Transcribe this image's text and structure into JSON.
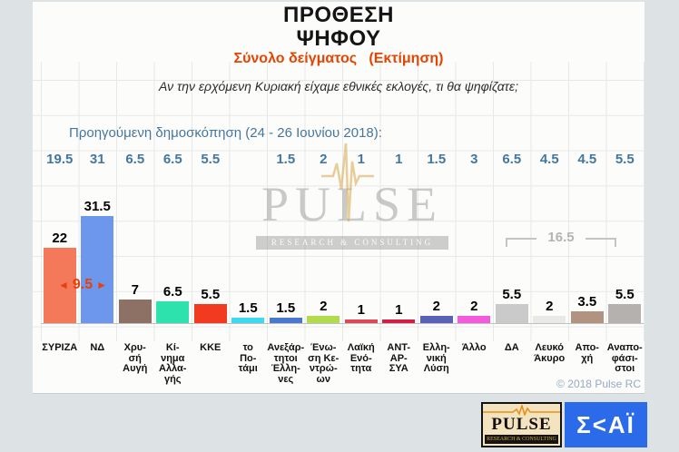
{
  "header": {
    "title_line1": "ΠΡΟΘΕΣΗ",
    "title_line2": "ΨΗΦΟΥ",
    "subtitle": "Σύνολο δείγματος   (Εκτίμηση)",
    "question": "Αν την ερχόμενη Κυριακή είχαμε εθνικές εκλογές, τι θα ψηφίζατε;",
    "previous_poll_label": "Προηγούμενη δημοσκόπηση (24 - 26 Ιουνίου 2018):"
  },
  "annotations": {
    "leader_gap": "9.5",
    "left_arrow": "◄",
    "right_arrow": "►",
    "undecided_sum": "16.5"
  },
  "footer": {
    "copyright": "© 2018 Pulse RC"
  },
  "watermark": {
    "name": "PULSE",
    "tagline": "RESEARCH & CONSULTING"
  },
  "logos": {
    "pulse": {
      "name": "PULSE",
      "tagline": "RESEARCH & CONSULTING"
    },
    "skai": {
      "text": "Σ<ΑΪ"
    }
  },
  "chart_data": {
    "type": "bar",
    "title": "ΠΡΟΘΕΣΗ ΨΗΦΟΥ — Σύνολο δείγματος (Εκτίμηση)",
    "categories": [
      "ΣΥΡΙΖΑ",
      "ΝΔ",
      "Χρυσή Αυγή",
      "Κίνημα Αλλαγής",
      "ΚΚΕ",
      "το Ποτάμι",
      "Ανεξάρτητοι Έλληνες",
      "Ένωση Κεντρώων",
      "Λαϊκή Ενότητα",
      "ΑΝΤ-ΑΡ-ΣΥΑ",
      "Ελληνική Λύση",
      "Άλλο",
      "ΔΑ",
      "Λευκό Άκυρο",
      "Αποχή",
      "Αναποφάσιστοι"
    ],
    "category_display_lines": [
      [
        "ΣΥΡΙΖΑ"
      ],
      [
        "ΝΔ"
      ],
      [
        "Χρυ-",
        "σή",
        "Αυγή"
      ],
      [
        "Κί-",
        "νημα",
        "Αλλα-",
        "γής"
      ],
      [
        "ΚΚΕ"
      ],
      [
        "το",
        "Πο-",
        "τάμι"
      ],
      [
        "Ανεξάρ-",
        "τητοι",
        "Έλλη-",
        "νες"
      ],
      [
        "Ένω-",
        "ση Κε-",
        "ντρώ-",
        "ων"
      ],
      [
        "Λαϊκή",
        "Ενό-",
        "τητα"
      ],
      [
        "ΑΝΤ-",
        "ΑΡ-",
        "ΣΥΑ"
      ],
      [
        "Ελλη-",
        "νική",
        "Λύση"
      ],
      [
        "Άλλο"
      ],
      [
        "ΔΑ"
      ],
      [
        "Λευκό",
        "Άκυρο"
      ],
      [
        "Απο-",
        "χή"
      ],
      [
        "Αναπο-",
        "φάσι-",
        "στοι"
      ]
    ],
    "series": [
      {
        "name": "Προηγούμενη δημοσκόπηση (24 - 26 Ιουνίου 2018)",
        "values": [
          19.5,
          31,
          6.5,
          6.5,
          5.5,
          null,
          1.5,
          2,
          1,
          1,
          1.5,
          3,
          6.5,
          4.5,
          4.5,
          5.5
        ]
      },
      {
        "name": "Εκτίμηση",
        "values": [
          22,
          31.5,
          7,
          6.5,
          5.5,
          1.5,
          1.5,
          2,
          1,
          1,
          2,
          2,
          5.5,
          2,
          3.5,
          5.5
        ]
      }
    ],
    "bar_colors": [
      "#F4795B",
      "#6D97EC",
      "#8C7164",
      "#2EE2AE",
      "#F13A20",
      "#3ED8F0",
      "#4A77D0",
      "#B2DC4E",
      "#E04858",
      "#D41E46",
      "#5A62B8",
      "#F35BDC",
      "#CACACA",
      "#E9E9E6",
      "#B29281",
      "#B4B1AE"
    ],
    "ylim": [
      0,
      33
    ],
    "grid": true,
    "legend": "none"
  }
}
